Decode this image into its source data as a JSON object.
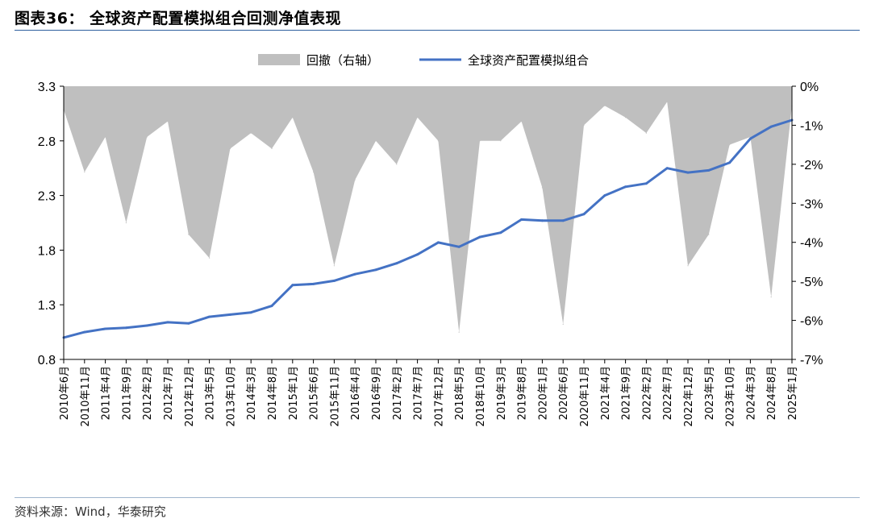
{
  "header": {
    "title": "图表36：  全球资产配置模拟组合回测净值表现"
  },
  "footer": {
    "source": "资料来源：Wind，华泰研究"
  },
  "colors": {
    "line": "#4472c4",
    "area": "#bfbfbf",
    "rule": "#2e5f9e"
  },
  "chart_data": {
    "type": "line",
    "legend": {
      "placement": "top-center",
      "items": [
        "回撤（右轴）",
        "全球资产配置模拟组合"
      ]
    },
    "x_tick_labels": [
      "2010年6月",
      "2010年11月",
      "2011年4月",
      "2011年9月",
      "2012年2月",
      "2012年7月",
      "2012年12月",
      "2013年5月",
      "2013年10月",
      "2014年3月",
      "2014年8月",
      "2015年1月",
      "2015年6月",
      "2015年11月",
      "2016年4月",
      "2016年9月",
      "2017年2月",
      "2017年7月",
      "2017年12月",
      "2018年5月",
      "2018年10月",
      "2019年3月",
      "2019年8月",
      "2020年1月",
      "2020年6月",
      "2020年11月",
      "2021年4月",
      "2021年9月",
      "2022年2月",
      "2022年7月",
      "2022年12月",
      "2023年5月",
      "2023年10月",
      "2024年3月",
      "2024年8月",
      "2025年1月"
    ],
    "y_left": {
      "ticks": [
        "0.8",
        "1.3",
        "1.8",
        "2.3",
        "2.8",
        "3.3"
      ],
      "lim": [
        0.8,
        3.3
      ]
    },
    "y_right": {
      "ticks": [
        "0%",
        "-1%",
        "-2%",
        "-3%",
        "-4%",
        "-5%",
        "-6%",
        "-7%"
      ],
      "lim": [
        -7,
        0
      ]
    },
    "series": [
      {
        "name": "全球资产配置模拟组合",
        "kind": "line",
        "axis": "left",
        "x": [
          "2010年6月",
          "2010年11月",
          "2011年4月",
          "2011年9月",
          "2012年2月",
          "2012年7月",
          "2012年12月",
          "2013年5月",
          "2013年10月",
          "2014年3月",
          "2014年8月",
          "2015年1月",
          "2015年6月",
          "2015年11月",
          "2016年4月",
          "2016年9月",
          "2017年2月",
          "2017年7月",
          "2017年12月",
          "2018年5月",
          "2018年10月",
          "2019年3月",
          "2019年8月",
          "2020年1月",
          "2020年6月",
          "2020年11月",
          "2021年4月",
          "2021年9月",
          "2022年2月",
          "2022年7月",
          "2022年12月",
          "2023年5月",
          "2023年10月",
          "2024年3月",
          "2024年8月",
          "2025年1月"
        ],
        "values": [
          1.0,
          1.05,
          1.08,
          1.09,
          1.11,
          1.14,
          1.13,
          1.19,
          1.21,
          1.23,
          1.29,
          1.48,
          1.49,
          1.52,
          1.58,
          1.62,
          1.68,
          1.76,
          1.87,
          1.83,
          1.92,
          1.96,
          2.08,
          2.07,
          2.07,
          2.13,
          2.3,
          2.38,
          2.41,
          2.55,
          2.51,
          2.53,
          2.6,
          2.82,
          2.93,
          2.99
        ]
      },
      {
        "name": "回撤（右轴）",
        "kind": "area",
        "axis": "right",
        "x": [
          "2010年6月",
          "2010年11月",
          "2011年4月",
          "2011年9月",
          "2012年2月",
          "2012年7月",
          "2012年12月",
          "2013年5月",
          "2013年10月",
          "2014年3月",
          "2014年8月",
          "2015年1月",
          "2015年6月",
          "2015年11月",
          "2016年4月",
          "2016年9月",
          "2017年2月",
          "2017年7月",
          "2017年12月",
          "2018年5月",
          "2018年10月",
          "2019年3月",
          "2019年8月",
          "2020年1月",
          "2020年6月",
          "2020年11月",
          "2021年4月",
          "2021年9月",
          "2022年2月",
          "2022年7月",
          "2022年12月",
          "2023年5月",
          "2023年10月",
          "2024年3月",
          "2024年8月",
          "2025年1月"
        ],
        "values": [
          -0.6,
          -2.2,
          -1.3,
          -3.5,
          -1.3,
          -0.9,
          -3.8,
          -4.4,
          -1.6,
          -1.2,
          -1.6,
          -0.8,
          -2.2,
          -4.6,
          -2.4,
          -1.4,
          -2.0,
          -0.8,
          -1.4,
          -6.3,
          -1.4,
          -1.4,
          -0.9,
          -2.6,
          -6.1,
          -1.0,
          -0.5,
          -0.8,
          -1.2,
          -0.4,
          -4.6,
          -3.8,
          -1.5,
          -1.3,
          -5.4,
          -0.5
        ]
      }
    ]
  }
}
